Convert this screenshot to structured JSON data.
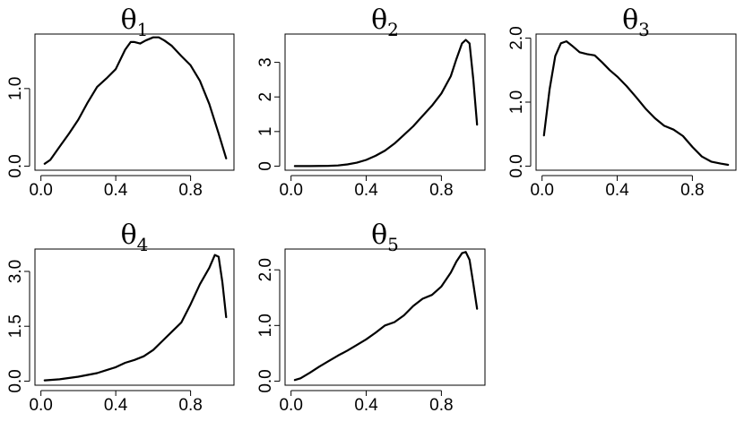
{
  "chart_data": [
    {
      "type": "line",
      "title": "θ",
      "title_subscript": "1",
      "xlim": [
        0,
        1
      ],
      "ylim": [
        0,
        1.65
      ],
      "x_ticks": [
        0.0,
        0.4,
        0.8
      ],
      "x_tick_labels": [
        "0.0",
        "0.4",
        "0.8"
      ],
      "y_ticks": [
        0.0,
        1.0
      ],
      "y_tick_labels": [
        "0.0",
        "1.0"
      ],
      "series": [
        {
          "x": [
            0.02,
            0.05,
            0.1,
            0.15,
            0.2,
            0.25,
            0.3,
            0.35,
            0.4,
            0.45,
            0.48,
            0.5,
            0.53,
            0.56,
            0.6,
            0.63,
            0.66,
            0.7,
            0.75,
            0.8,
            0.85,
            0.9,
            0.95,
            0.99
          ],
          "y": [
            0.03,
            0.08,
            0.25,
            0.42,
            0.6,
            0.82,
            1.02,
            1.13,
            1.25,
            1.5,
            1.6,
            1.6,
            1.58,
            1.62,
            1.66,
            1.66,
            1.62,
            1.55,
            1.42,
            1.3,
            1.1,
            0.8,
            0.42,
            0.1
          ]
        }
      ]
    },
    {
      "type": "line",
      "title": "θ",
      "title_subscript": "2",
      "xlim": [
        0,
        1
      ],
      "ylim": [
        0,
        3.7
      ],
      "x_ticks": [
        0.0,
        0.4,
        0.8
      ],
      "x_tick_labels": [
        "0.0",
        "0.4",
        "0.8"
      ],
      "y_ticks": [
        0,
        1,
        2,
        3
      ],
      "y_tick_labels": [
        "0",
        "1",
        "2",
        "3"
      ],
      "series": [
        {
          "x": [
            0.02,
            0.1,
            0.2,
            0.25,
            0.3,
            0.35,
            0.4,
            0.45,
            0.5,
            0.55,
            0.6,
            0.65,
            0.7,
            0.75,
            0.8,
            0.85,
            0.88,
            0.91,
            0.93,
            0.95,
            0.97,
            0.99
          ],
          "y": [
            0.0,
            0.0,
            0.01,
            0.02,
            0.05,
            0.1,
            0.18,
            0.3,
            0.45,
            0.65,
            0.9,
            1.15,
            1.45,
            1.75,
            2.1,
            2.6,
            3.1,
            3.55,
            3.65,
            3.55,
            2.5,
            1.2
          ]
        }
      ]
    },
    {
      "type": "line",
      "title": "θ",
      "title_subscript": "3",
      "xlim": [
        0,
        1
      ],
      "ylim": [
        0,
        2.0
      ],
      "x_ticks": [
        0.0,
        0.4,
        0.8
      ],
      "x_tick_labels": [
        "0.0",
        "0.4",
        "0.8"
      ],
      "y_ticks": [
        0.0,
        1.0,
        2.0
      ],
      "y_tick_labels": [
        "0.0",
        "1.0",
        "2.0"
      ],
      "series": [
        {
          "x": [
            0.01,
            0.04,
            0.07,
            0.1,
            0.13,
            0.16,
            0.2,
            0.24,
            0.28,
            0.32,
            0.36,
            0.4,
            0.45,
            0.5,
            0.55,
            0.6,
            0.65,
            0.7,
            0.75,
            0.8,
            0.85,
            0.9,
            0.95,
            0.99
          ],
          "y": [
            0.48,
            1.2,
            1.72,
            1.92,
            1.95,
            1.88,
            1.78,
            1.75,
            1.73,
            1.62,
            1.5,
            1.4,
            1.25,
            1.08,
            0.9,
            0.75,
            0.63,
            0.57,
            0.47,
            0.3,
            0.15,
            0.07,
            0.04,
            0.02
          ]
        }
      ]
    },
    {
      "type": "line",
      "title": "θ",
      "title_subscript": "4",
      "xlim": [
        0,
        1
      ],
      "ylim": [
        0,
        3.5
      ],
      "x_ticks": [
        0.0,
        0.4,
        0.8
      ],
      "x_tick_labels": [
        "0.0",
        "0.4",
        "0.8"
      ],
      "y_ticks": [
        0.0,
        1.5,
        3.0
      ],
      "y_tick_labels": [
        "0.0",
        "1.5",
        "3.0"
      ],
      "series": [
        {
          "x": [
            0.02,
            0.1,
            0.2,
            0.3,
            0.35,
            0.4,
            0.45,
            0.5,
            0.55,
            0.6,
            0.65,
            0.7,
            0.75,
            0.8,
            0.85,
            0.9,
            0.93,
            0.95,
            0.97,
            0.99
          ],
          "y": [
            0.02,
            0.05,
            0.12,
            0.22,
            0.3,
            0.38,
            0.5,
            0.58,
            0.68,
            0.85,
            1.1,
            1.35,
            1.6,
            2.1,
            2.65,
            3.1,
            3.45,
            3.4,
            2.7,
            1.75
          ]
        }
      ]
    },
    {
      "type": "line",
      "title": "θ",
      "title_subscript": "5",
      "xlim": [
        0,
        1
      ],
      "ylim": [
        0,
        2.3
      ],
      "x_ticks": [
        0.0,
        0.4,
        0.8
      ],
      "x_tick_labels": [
        "0.0",
        "0.4",
        "0.8"
      ],
      "y_ticks": [
        0.0,
        1.0,
        2.0
      ],
      "y_tick_labels": [
        "0.0",
        "1.0",
        "2.0"
      ],
      "series": [
        {
          "x": [
            0.02,
            0.05,
            0.1,
            0.15,
            0.2,
            0.25,
            0.3,
            0.35,
            0.4,
            0.45,
            0.5,
            0.55,
            0.6,
            0.65,
            0.7,
            0.75,
            0.8,
            0.85,
            0.88,
            0.91,
            0.93,
            0.95,
            0.97,
            0.99
          ],
          "y": [
            0.02,
            0.05,
            0.15,
            0.26,
            0.36,
            0.46,
            0.55,
            0.65,
            0.75,
            0.87,
            1.0,
            1.06,
            1.18,
            1.35,
            1.48,
            1.55,
            1.7,
            1.95,
            2.15,
            2.3,
            2.32,
            2.18,
            1.75,
            1.3
          ]
        }
      ]
    }
  ]
}
